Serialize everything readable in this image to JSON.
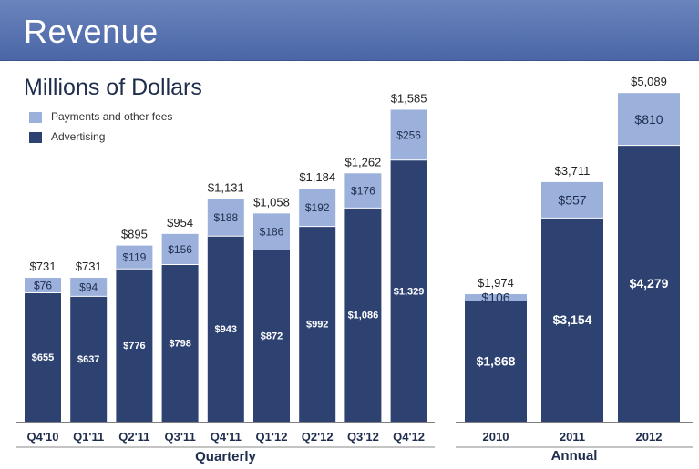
{
  "header": {
    "title": "Revenue"
  },
  "subtitle": "Millions of Dollars",
  "legend": [
    {
      "label": "Payments and other fees",
      "color": "#9bb1dc"
    },
    {
      "label": "Advertising",
      "color": "#2e4272"
    }
  ],
  "colors": {
    "advertising": "#2e4272",
    "payments": "#9bb1dc"
  },
  "chart_data": [
    {
      "type": "bar",
      "stacked": true,
      "xlabel": "Quarterly",
      "categories": [
        "Q4'10",
        "Q1'11",
        "Q2'11",
        "Q3'11",
        "Q4'11",
        "Q1'12",
        "Q2'12",
        "Q3'12",
        "Q4'12"
      ],
      "series": [
        {
          "name": "Advertising",
          "values": [
            655,
            637,
            776,
            798,
            943,
            872,
            992,
            1086,
            1329
          ]
        },
        {
          "name": "Payments and other fees",
          "values": [
            76,
            94,
            119,
            156,
            188,
            186,
            192,
            176,
            256
          ]
        }
      ],
      "totals": [
        731,
        731,
        895,
        954,
        1131,
        1058,
        1184,
        1262,
        1585
      ],
      "value_labels": {
        "advertising": [
          "$655",
          "$637",
          "$776",
          "$798",
          "$943",
          "$872",
          "$992",
          "$1,086",
          "$1,329"
        ],
        "payments": [
          "$76",
          "$94",
          "$119",
          "$156",
          "$188",
          "$186",
          "$192",
          "$176",
          "$256"
        ],
        "totals": [
          "$731",
          "$731",
          "$895",
          "$954",
          "$1,131",
          "$1,058",
          "$1,184",
          "$1,262",
          "$1,585"
        ]
      }
    },
    {
      "type": "bar",
      "stacked": true,
      "xlabel": "Annual",
      "categories": [
        "2010",
        "2011",
        "2012"
      ],
      "series": [
        {
          "name": "Advertising",
          "values": [
            1868,
            3154,
            4279
          ]
        },
        {
          "name": "Payments and other fees",
          "values": [
            106,
            557,
            810
          ]
        }
      ],
      "totals": [
        1974,
        3711,
        5089
      ],
      "value_labels": {
        "advertising": [
          "$1,868",
          "$3,154",
          "$4,279"
        ],
        "payments": [
          "$106",
          "$557",
          "$810"
        ],
        "totals": [
          "$1,974",
          "$3,711",
          "$5,089"
        ]
      }
    }
  ]
}
